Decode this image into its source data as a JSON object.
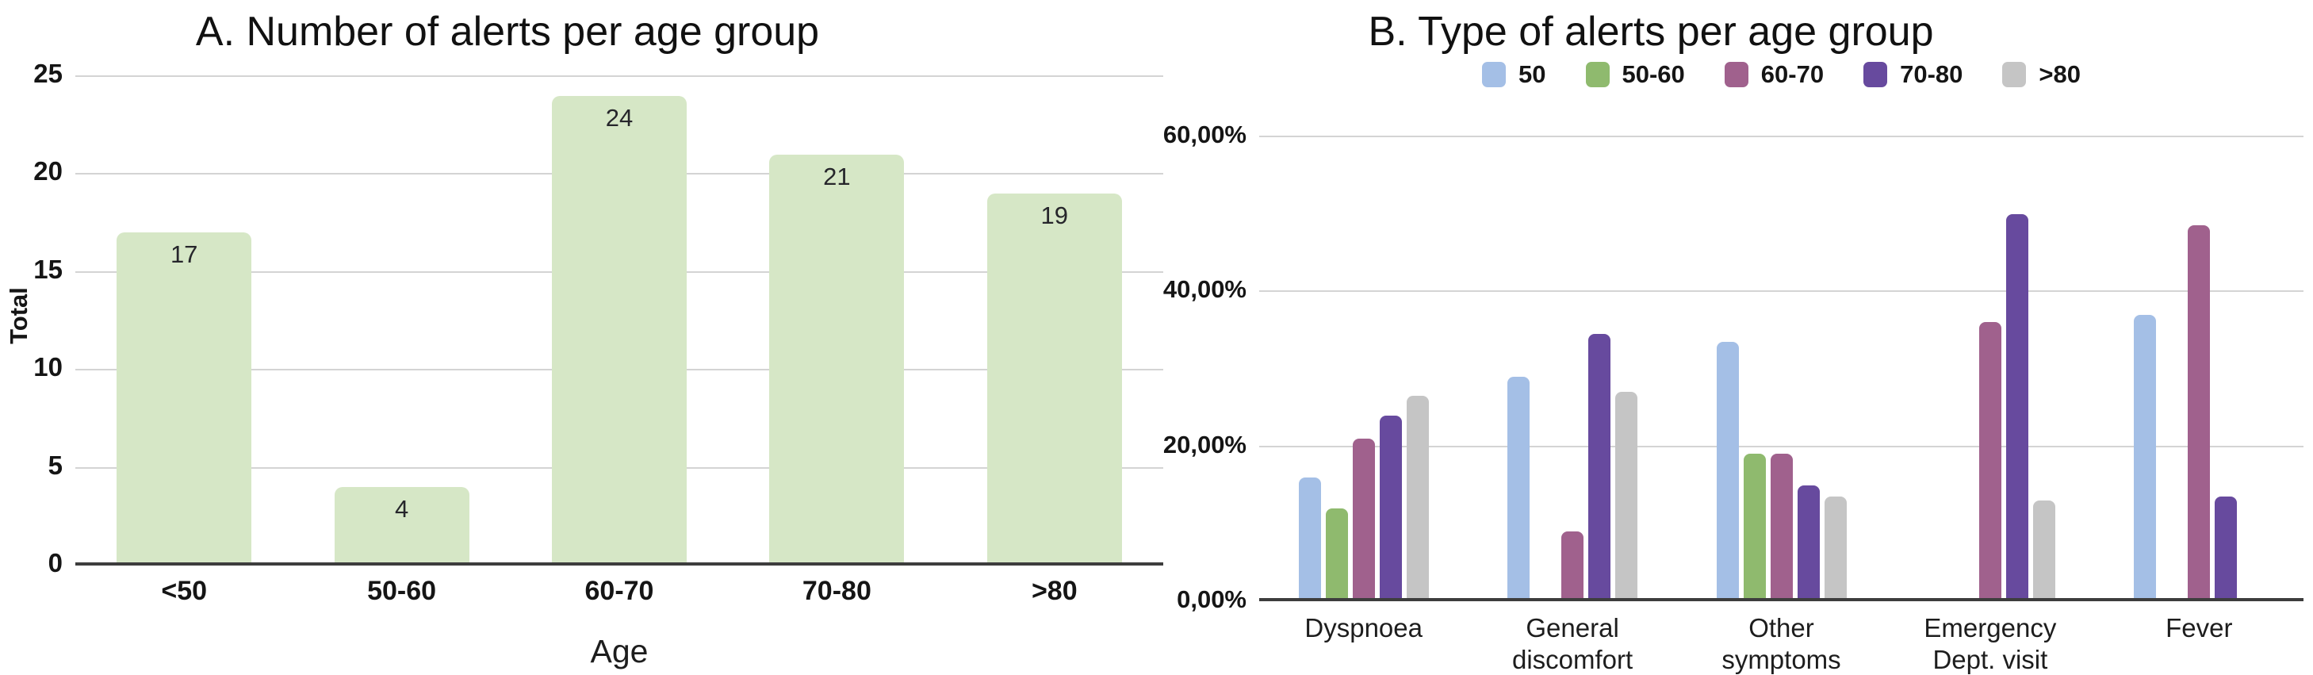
{
  "figure": {
    "panel_a_title": "A. Number of alerts per age group",
    "panel_b_title": "B. Type of alerts per age group"
  },
  "chart_data": [
    {
      "type": "bar",
      "panel": "A",
      "title": "A. Number of alerts per age group",
      "categories": [
        "<50",
        "50-60",
        "60-70",
        "70-80",
        ">80"
      ],
      "values": [
        17,
        4,
        24,
        21,
        19
      ],
      "value_labels": [
        "17",
        "4",
        "24",
        "21",
        "19"
      ],
      "xlabel": "Age",
      "ylabel": "Total",
      "ylim": [
        0,
        25
      ],
      "yticks": [
        {
          "value": 0,
          "label": "0"
        },
        {
          "value": 5,
          "label": "5"
        },
        {
          "value": 10,
          "label": "10"
        },
        {
          "value": 15,
          "label": "15"
        },
        {
          "value": 20,
          "label": "20"
        },
        {
          "value": 25,
          "label": "25"
        }
      ],
      "grid": true,
      "bar_color": "#d6e7c6",
      "legend_position": "none"
    },
    {
      "type": "bar",
      "panel": "B",
      "title": "B. Type of alerts per age group",
      "categories": [
        "Dyspnoea",
        "General discomfort",
        "Other\nsymptoms",
        "Emergency\nDept. visit",
        "Fever"
      ],
      "series": [
        {
          "name": "50",
          "color": "#a4bfe6",
          "values": [
            16,
            29,
            33.5,
            null,
            37
          ]
        },
        {
          "name": "50-60",
          "color": "#8fba6e",
          "values": [
            12,
            null,
            19,
            null,
            null
          ]
        },
        {
          "name": "60-70",
          "color": "#a0618d",
          "values": [
            21,
            9,
            19,
            36,
            48.5
          ]
        },
        {
          "name": "70-80",
          "color": "#674a9e",
          "values": [
            24,
            34.5,
            15,
            50,
            13.5
          ]
        },
        {
          "name": ">80",
          "color": "#c5c5c5",
          "values": [
            26.5,
            27,
            13.5,
            13,
            null
          ]
        }
      ],
      "xlabel": "",
      "ylabel": "",
      "ylim": [
        0,
        60
      ],
      "yticks": [
        {
          "value": 0,
          "label": "0,00%"
        },
        {
          "value": 20,
          "label": "20,00%"
        },
        {
          "value": 40,
          "label": "40,00%"
        },
        {
          "value": 60,
          "label": "60,00%"
        }
      ],
      "grid": true,
      "legend_position": "top"
    }
  ]
}
